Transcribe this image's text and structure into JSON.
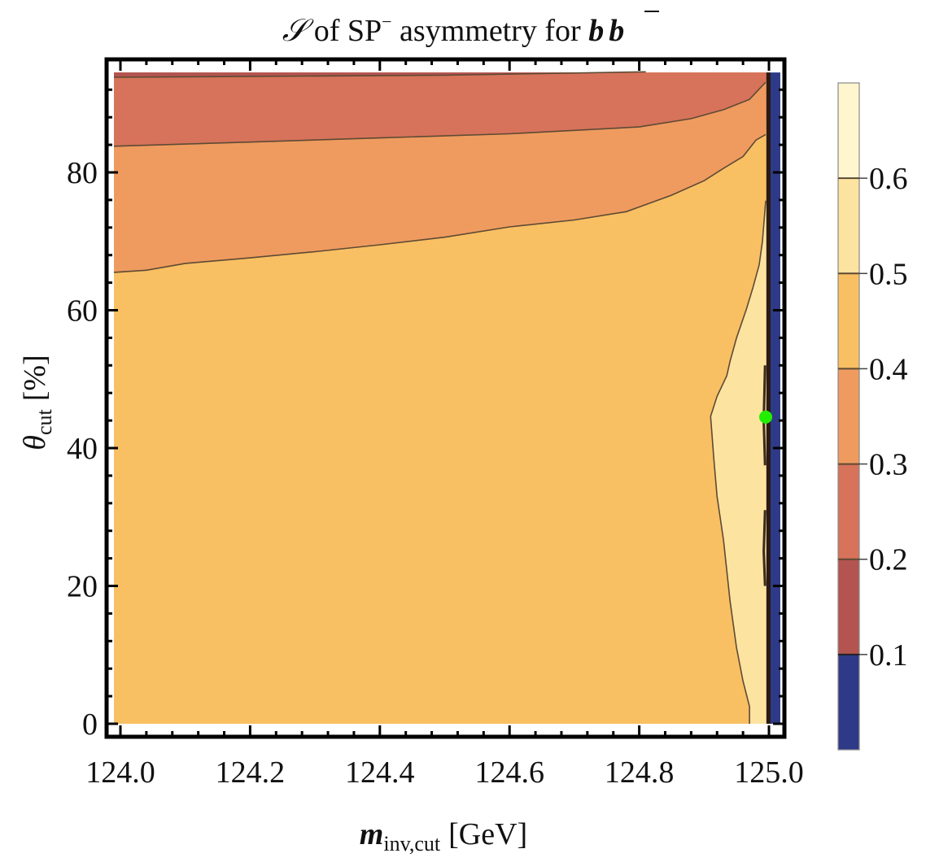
{
  "chart_data": {
    "type": "contour",
    "title": "𝒮 of SP⁻ asymmetry for b b̄",
    "title_parts": {
      "script_s": "𝒮",
      "mid": " of SP",
      "sup": "−",
      "tail": " asymmetry for ",
      "b1": "b",
      "b2": "b"
    },
    "xlabel": "m_inv,cut [GeV]",
    "xlabel_parts": {
      "sym": "m",
      "sub": "inv,cut",
      "unit": "[GeV]"
    },
    "ylabel": "θ_cut [%]",
    "ylabel_parts": {
      "sym": "θ",
      "sub": "cut",
      "unit": "[%]"
    },
    "xlim": [
      123.99,
      125.02
    ],
    "ylim": [
      -2,
      96
    ],
    "x_ticks": [
      124.0,
      124.2,
      124.4,
      124.6,
      124.8,
      125.0
    ],
    "x_tick_labels": [
      "124.0",
      "124.2",
      "124.4",
      "124.6",
      "124.8",
      "125.0"
    ],
    "y_ticks": [
      0,
      20,
      40,
      60,
      80
    ],
    "y_tick_labels": [
      "0",
      "20",
      "40",
      "60",
      "80"
    ],
    "colorbar": {
      "range": [
        0.0,
        0.7
      ],
      "levels": [
        0.1,
        0.2,
        0.3,
        0.4,
        0.5,
        0.6
      ],
      "level_labels": [
        "0.1",
        "0.2",
        "0.3",
        "0.4",
        "0.5",
        "0.6"
      ],
      "band_colors": [
        "#2e3a87",
        "#b35450",
        "#d6735a",
        "#ef9b5f",
        "#f9bf63",
        "#fde3a0",
        "#fff6cf"
      ]
    },
    "regions": [
      {
        "level": "0.4-0.5",
        "color": "#f9bf63",
        "description": "base region"
      },
      {
        "level": "0.3-0.4",
        "color": "#ef9b5f"
      },
      {
        "level": "0.2-0.3",
        "color": "#d6735a"
      },
      {
        "level": "0.1-0.2",
        "color": "#b35450"
      },
      {
        "level": "0.5-0.6",
        "color": "#fde3a0"
      },
      {
        "level": "<0.1",
        "color": "#2e3a87"
      }
    ],
    "contour_0_3": [
      [
        123.99,
        65.5
      ],
      [
        124.04,
        65.8
      ],
      [
        124.1,
        66.8
      ],
      [
        124.2,
        67.6
      ],
      [
        124.3,
        68.5
      ],
      [
        124.4,
        69.5
      ],
      [
        124.5,
        70.6
      ],
      [
        124.6,
        72.1
      ],
      [
        124.7,
        73.1
      ],
      [
        124.78,
        74.3
      ],
      [
        124.85,
        76.7
      ],
      [
        124.9,
        78.8
      ],
      [
        124.93,
        80.6
      ],
      [
        124.96,
        82.3
      ],
      [
        124.98,
        84.7
      ],
      [
        124.995,
        85.5
      ]
    ],
    "contour_0_4": [
      [
        123.99,
        83.8
      ],
      [
        124.2,
        84.4
      ],
      [
        124.4,
        85.0
      ],
      [
        124.6,
        85.6
      ],
      [
        124.8,
        86.6
      ],
      [
        124.88,
        87.8
      ],
      [
        124.93,
        89.1
      ],
      [
        124.97,
        90.6
      ],
      [
        124.98,
        91.6
      ],
      [
        124.995,
        93.1
      ]
    ],
    "contour_0_5": [
      [
        123.99,
        93.8
      ],
      [
        124.5,
        94.1
      ],
      [
        124.81,
        94.6
      ]
    ],
    "contour_0_6": [
      [
        124.97,
        0.0
      ],
      [
        124.97,
        2.5
      ],
      [
        124.96,
        6.2
      ],
      [
        124.95,
        11.0
      ],
      [
        124.94,
        17.8
      ],
      [
        124.93,
        26.6
      ],
      [
        124.92,
        33.0
      ],
      [
        124.915,
        38.4
      ],
      [
        124.91,
        44.6
      ],
      [
        124.92,
        47.5
      ],
      [
        124.935,
        50.5
      ],
      [
        124.94,
        52.6
      ],
      [
        124.95,
        56.0
      ],
      [
        124.965,
        60.1
      ],
      [
        124.975,
        63.2
      ],
      [
        124.985,
        66.6
      ],
      [
        124.99,
        70.0
      ],
      [
        124.995,
        75.9
      ]
    ],
    "low_band_x": [
      125.0,
      125.015
    ],
    "marker": {
      "x": 124.995,
      "y": 44.5,
      "color": "#22ee00"
    }
  }
}
